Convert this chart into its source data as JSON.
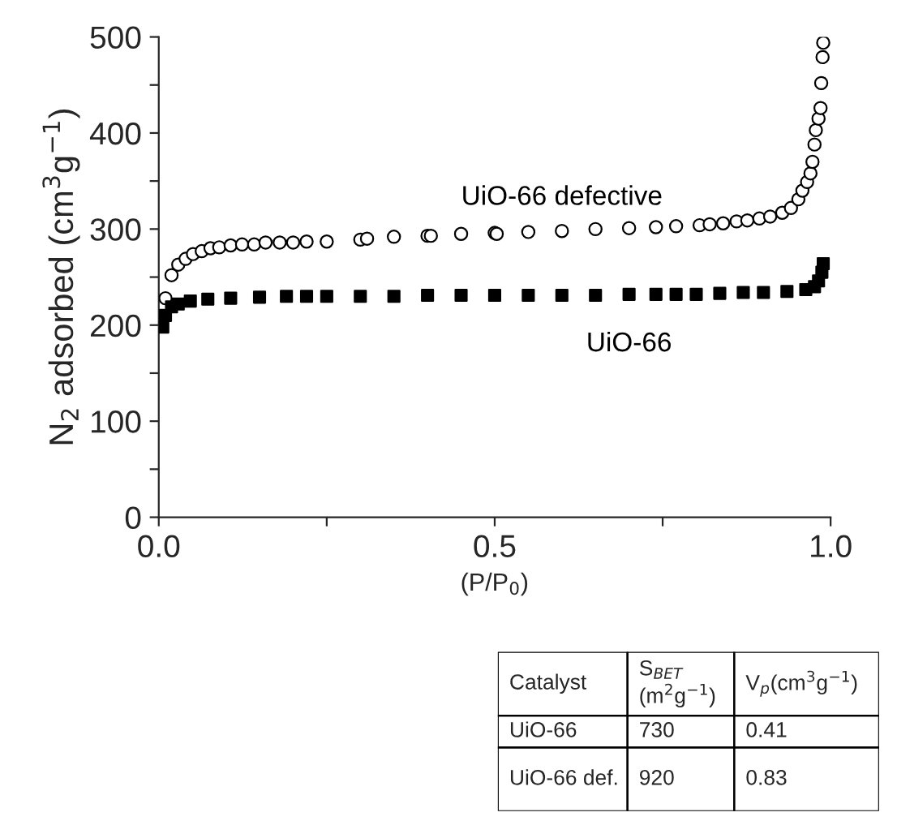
{
  "chart_data": [
    {
      "type": "scatter",
      "xlabel": "(P/P$_{0}$)",
      "ylabel": "N$_{2}$ adsorbed (cm$^{3}$g$^{−1}$)",
      "xlim": [
        0,
        1
      ],
      "ylim": [
        0,
        500
      ],
      "xticks": [
        {
          "value": 0,
          "label": "0.0"
        },
        {
          "value": 0.25,
          "label": null
        },
        0.5,
        {
          "value": 0.75,
          "label": null
        },
        {
          "value": 1,
          "label": "1.0"
        }
      ],
      "yticks": [
        0,
        {
          "value": 50,
          "label": null
        },
        100,
        {
          "value": 150,
          "label": null
        },
        200,
        {
          "value": 250,
          "label": null
        },
        300,
        {
          "value": 350,
          "label": null
        },
        400,
        {
          "value": 450,
          "label": null
        },
        500
      ],
      "grid": false,
      "legend": false,
      "series": [
        {
          "name": "UiO-66 defective",
          "color": "#000000",
          "marker": "circle",
          "x": [
            0.01,
            0.019,
            0.029,
            0.04,
            0.051,
            0.064,
            0.077,
            0.09,
            0.107,
            0.124,
            0.142,
            0.159,
            0.18,
            0.2,
            0.22,
            0.25,
            0.3,
            0.31,
            0.35,
            0.4,
            0.405,
            0.45,
            0.5,
            0.503,
            0.55,
            0.6,
            0.65,
            0.7,
            0.74,
            0.77,
            0.805,
            0.82,
            0.84,
            0.86,
            0.876,
            0.894,
            0.91,
            0.928,
            0.941,
            0.952,
            0.958,
            0.965,
            0.97,
            0.973,
            0.976,
            0.978,
            0.982,
            0.985,
            0.986,
            0.988,
            0.989
          ],
          "values": [
            228,
            252,
            263,
            269,
            274,
            277,
            280,
            281,
            283,
            284,
            284,
            286,
            286,
            286,
            287,
            287,
            289,
            290,
            292,
            293,
            293,
            295,
            296,
            295,
            297,
            298,
            300,
            301,
            302,
            303,
            304,
            305,
            306,
            308,
            309,
            311,
            313,
            317,
            322,
            331,
            340,
            349,
            358,
            370,
            388,
            403,
            415,
            426,
            452,
            479,
            494
          ]
        },
        {
          "name": "UiO-66",
          "color": "#000000",
          "marker": "square",
          "x": [
            0.006,
            0.01,
            0.019,
            0.029,
            0.047,
            0.073,
            0.107,
            0.15,
            0.19,
            0.22,
            0.25,
            0.3,
            0.35,
            0.4,
            0.45,
            0.5,
            0.55,
            0.6,
            0.65,
            0.7,
            0.74,
            0.77,
            0.8,
            0.835,
            0.87,
            0.9,
            0.935,
            0.963,
            0.976,
            0.982,
            0.987,
            0.989
          ],
          "values": [
            198,
            210,
            219,
            222,
            225,
            227,
            228,
            229,
            230,
            230,
            230,
            230,
            230,
            231,
            231,
            231,
            231,
            231,
            231,
            232,
            232,
            232,
            232,
            233,
            234,
            234,
            235,
            237,
            240,
            246,
            255,
            264
          ]
        }
      ]
    },
    {
      "type": "other",
      "annotations": [
        "Catalyst",
        "S$_{BET}$\n(m$^{2}$g$^{−1}$)",
        "V$_{p}$(cm$^{3}$g$^{−1}$)",
        "UiO-66",
        "730",
        "0.41",
        "UiO-66 def.",
        "920",
        "0.83"
      ]
    }
  ]
}
